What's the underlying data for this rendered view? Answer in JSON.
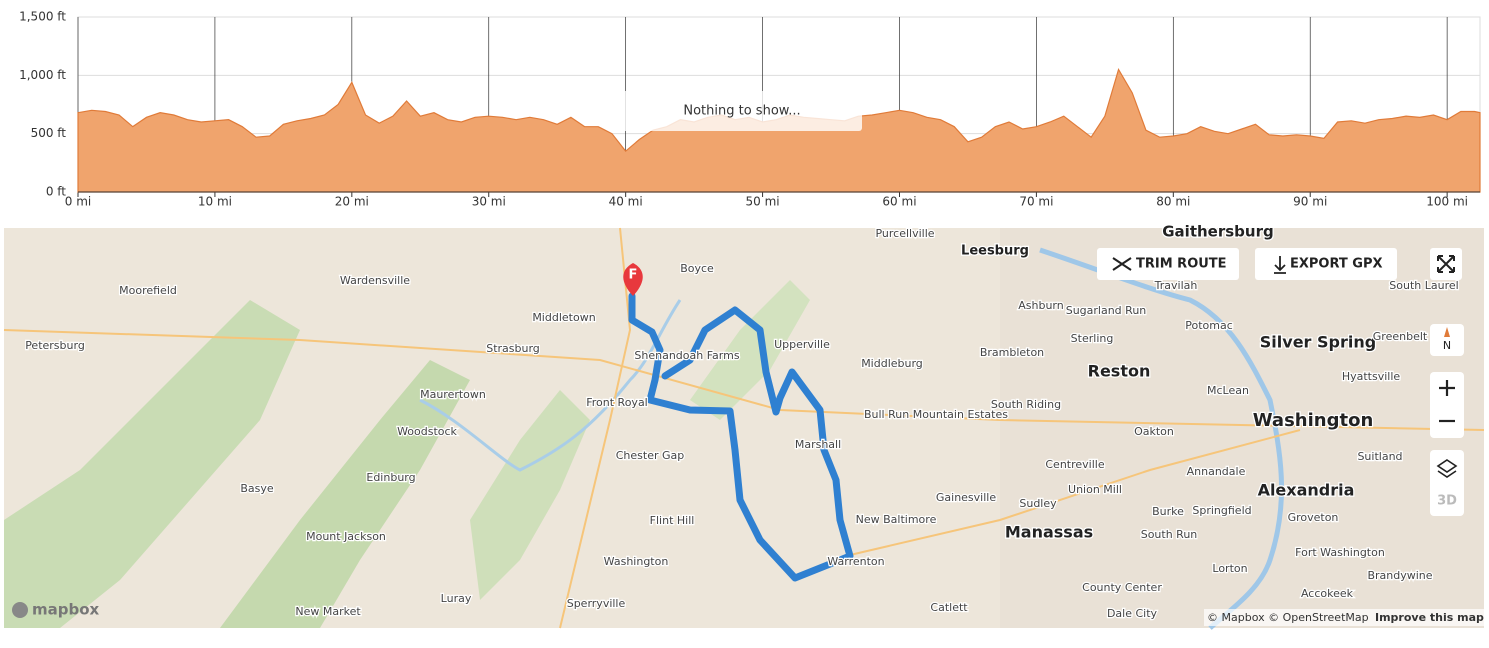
{
  "chart_data": {
    "type": "area",
    "x": [
      0,
      1,
      2,
      3,
      4,
      5,
      6,
      7,
      8,
      9,
      10,
      11,
      12,
      13,
      14,
      15,
      16,
      17,
      18,
      19,
      20,
      21,
      22,
      23,
      24,
      25,
      26,
      27,
      28,
      29,
      30,
      31,
      32,
      33,
      34,
      35,
      36,
      37,
      38,
      39,
      40,
      41,
      42,
      43,
      44,
      45,
      46,
      47,
      48,
      49,
      50,
      51,
      52,
      53,
      54,
      55,
      56,
      57,
      58,
      59,
      60,
      61,
      62,
      63,
      64,
      65,
      66,
      67,
      68,
      69,
      70,
      71,
      72,
      73,
      74,
      75,
      76,
      77,
      78,
      79,
      80,
      81,
      82,
      83,
      84,
      85,
      86,
      87,
      88,
      89,
      90,
      91,
      92,
      93,
      94,
      95,
      96,
      97,
      98,
      99,
      100,
      101,
      102,
      102.4
    ],
    "values": [
      680,
      700,
      690,
      660,
      560,
      640,
      680,
      660,
      620,
      600,
      610,
      620,
      560,
      470,
      480,
      580,
      610,
      630,
      660,
      750,
      940,
      660,
      590,
      650,
      780,
      650,
      680,
      620,
      600,
      640,
      650,
      640,
      620,
      640,
      620,
      580,
      640,
      560,
      560,
      500,
      350,
      450,
      530,
      560,
      620,
      600,
      640,
      660,
      620,
      640,
      600,
      620,
      660,
      640,
      630,
      620,
      610,
      650,
      660,
      680,
      700,
      680,
      640,
      620,
      560,
      430,
      470,
      560,
      600,
      540,
      560,
      600,
      650,
      560,
      470,
      650,
      1050,
      850,
      530,
      470,
      480,
      500,
      560,
      520,
      500,
      540,
      580,
      490,
      480,
      490,
      480,
      460,
      600,
      610,
      590,
      620,
      630,
      650,
      640,
      660,
      620,
      690,
      690,
      680
    ],
    "color": "#f0a46d",
    "xlim": [
      0,
      102.4
    ],
    "ylim": [
      0,
      1500
    ],
    "xticks": [
      {
        "value": 0,
        "label": "0 mi"
      },
      {
        "value": 10,
        "label": "10 mi"
      },
      {
        "value": 20,
        "label": "20 mi"
      },
      {
        "value": 30,
        "label": "30 mi"
      },
      {
        "value": 40,
        "label": "40 mi"
      },
      {
        "value": 50,
        "label": "50 mi"
      },
      {
        "value": 60,
        "label": "60 mi"
      },
      {
        "value": 70,
        "label": "70 mi"
      },
      {
        "value": 80,
        "label": "80 mi"
      },
      {
        "value": 90,
        "label": "90 mi"
      },
      {
        "value": 100,
        "label": "100 mi"
      }
    ],
    "yticks": [
      {
        "value": 0,
        "label": "0 ft"
      },
      {
        "value": 500,
        "label": "500 ft"
      },
      {
        "value": 1000,
        "label": "1,000 ft"
      },
      {
        "value": 1500,
        "label": "1,500 ft"
      }
    ],
    "grid": true,
    "annotation": "Nothing to show..."
  },
  "map": {
    "buttons": {
      "trim": "TRIM ROUTE",
      "export": "EXPORT GPX",
      "north": "N",
      "three_d": "3D"
    },
    "marker": "F",
    "labels": [
      "Moorefield",
      "Wardensville",
      "Petersburg",
      "Strasburg",
      "Middletown",
      "Maurertown",
      "Woodstock",
      "Front Royal",
      "Chester Gap",
      "Edinburg",
      "Basye",
      "Mount Jackson",
      "Flint Hill",
      "Washington",
      "New Market",
      "Luray",
      "Sperryville",
      "Boyce",
      "Shenandoah Farms",
      "Purcellville",
      "Upperville",
      "Middleburg",
      "Marshall",
      "Bull Run Mountain Estates",
      "New Baltimore",
      "Warrenton",
      "Catlett",
      "Leesburg",
      "Ashburn",
      "Sugarland Run",
      "Sterling",
      "Brambleton",
      "Reston",
      "South Riding",
      "Gainesville",
      "Centreville",
      "Union Mill",
      "Sudley",
      "Manassas",
      "Oakton",
      "Potomac",
      "McLean",
      "Silver Spring",
      "Hyattsville",
      "Washington",
      "Alexandria",
      "Annandale",
      "Burke",
      "Springfield",
      "South Run",
      "Groveton",
      "Suitland",
      "Fort Washington",
      "Lorton",
      "County Center",
      "Dale City",
      "Accokeek",
      "Brandywine",
      "Gaithersburg",
      "Travilah",
      "Greenbelt",
      "South Laurel"
    ],
    "logo": "mapbox",
    "attribution": "© Mapbox © OpenStreetMap",
    "improve": "Improve this map"
  }
}
